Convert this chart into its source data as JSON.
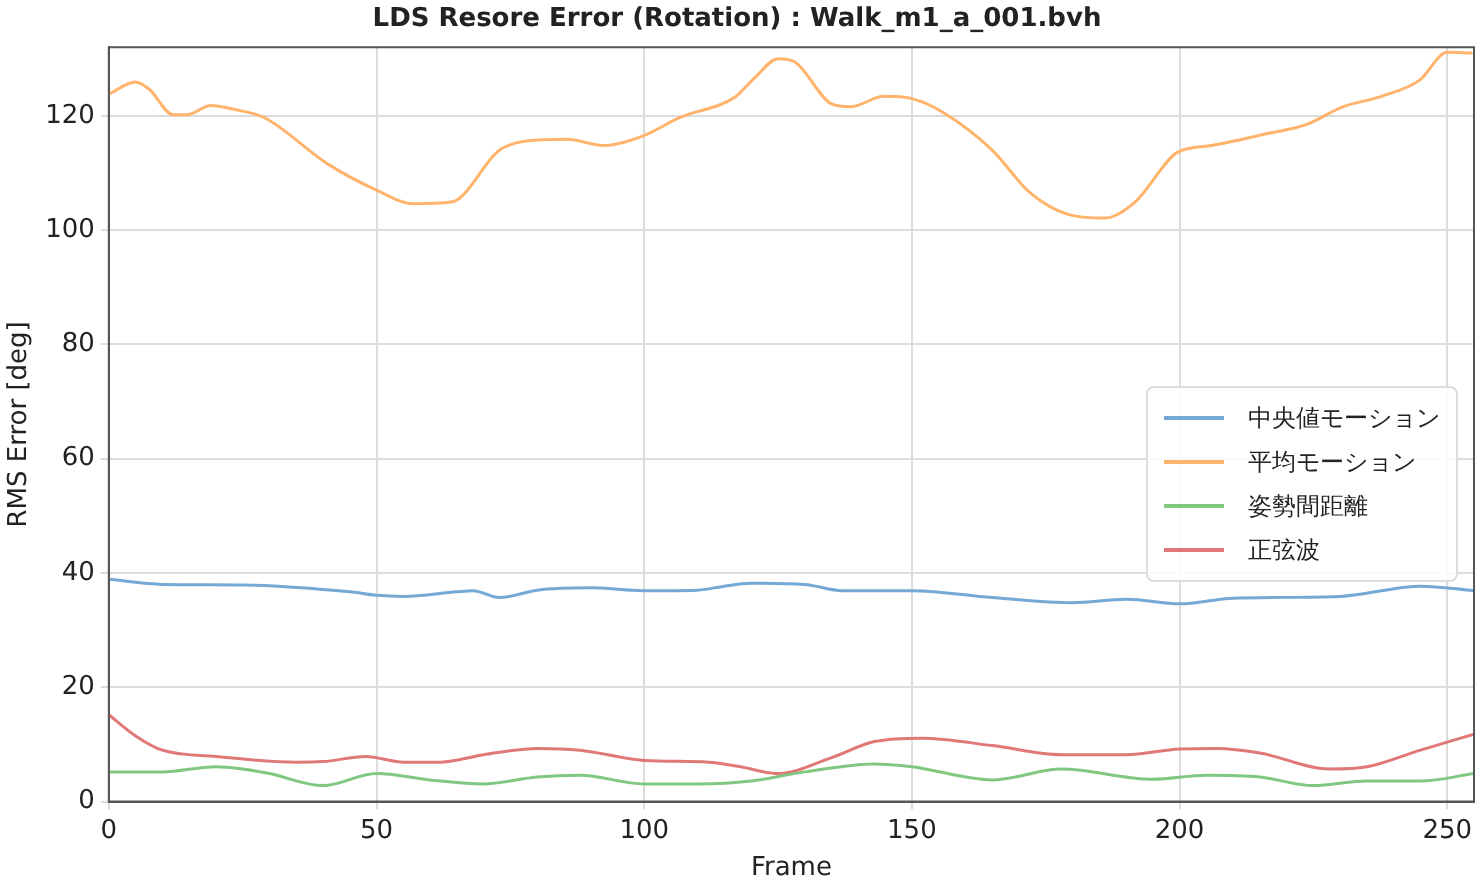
{
  "chart_data": {
    "type": "line",
    "title": "LDS Resore Error (Rotation) : Walk_m1_a_001.bvh",
    "xlabel": "Frame",
    "ylabel": "RMS Error [deg]",
    "xlim": [
      0,
      255
    ],
    "xticks": [
      0,
      50,
      100,
      150,
      200,
      250
    ],
    "ylim": [
      0,
      132
    ],
    "yticks": [
      0,
      20,
      40,
      60,
      80,
      100,
      120
    ],
    "grid": true,
    "legend": "right",
    "marker": "none",
    "line_style": "solid",
    "series": [
      {
        "name": "中央値モーション",
        "color": "#74a9d6",
        "x": [
          0,
          10,
          25,
          45,
          50,
          55,
          65,
          68,
          73,
          80,
          90,
          100,
          110,
          115,
          120,
          130,
          137,
          150,
          165,
          180,
          190,
          200,
          210,
          230,
          245,
          255
        ],
        "values": [
          38.9,
          38,
          37.9,
          36.7,
          36.1,
          35.9,
          36.7,
          36.9,
          35.7,
          37,
          37.4,
          36.9,
          37,
          37.7,
          38.2,
          38,
          36.9,
          36.9,
          35.7,
          34.8,
          35.4,
          34.6,
          35.6,
          35.9,
          37.7,
          36.9
        ]
      },
      {
        "name": "平均モーション",
        "color": "#ffb36b",
        "x": [
          0,
          5,
          7.6,
          12,
          14.7,
          19,
          23.5,
          29,
          41,
          50,
          57,
          64,
          73,
          78,
          85.5,
          92.5,
          99.6,
          106.7,
          117,
          121,
          125,
          128,
          135,
          138.6,
          144.8,
          150,
          156,
          165,
          172,
          179,
          186,
          191.7,
          199.6,
          206,
          216.5,
          223.5,
          230.6,
          237.7,
          244.8,
          250,
          254.5
        ],
        "values": [
          123.8,
          125.9,
          124.6,
          120.2,
          120.2,
          121.8,
          121.1,
          119.7,
          111.5,
          107,
          104.6,
          104.9,
          114,
          115.6,
          115.9,
          114.8,
          116.4,
          119.7,
          123.3,
          127,
          130,
          129.5,
          122.1,
          121.6,
          123.4,
          123,
          120.5,
          114,
          106.6,
          102.8,
          102.1,
          104.9,
          113.6,
          114.8,
          116.9,
          118.4,
          121.6,
          123.4,
          126.2,
          131.1,
          131
        ]
      },
      {
        "name": "姿勢間距離",
        "color": "#80c880",
        "x": [
          0,
          10,
          20,
          25,
          30,
          40,
          50,
          60,
          70,
          80,
          88,
          100,
          110,
          120,
          130,
          143,
          150,
          165,
          178,
          195,
          205,
          215,
          225,
          235,
          245,
          255
        ],
        "values": [
          5.2,
          5.2,
          6.1,
          5.7,
          4.9,
          2.8,
          4.9,
          3.8,
          3.1,
          4.3,
          4.6,
          3.1,
          3.1,
          3.6,
          5.2,
          6.6,
          6.1,
          3.8,
          5.7,
          3.9,
          4.6,
          4.3,
          2.8,
          3.6,
          3.6,
          4.9
        ]
      },
      {
        "name": "正弦波",
        "color": "#e07878",
        "x": [
          0,
          5,
          10,
          20,
          35,
          40,
          48,
          55,
          62,
          70,
          80,
          88,
          100,
          112,
          118,
          125,
          135,
          143,
          152,
          165,
          178,
          190,
          200,
          207,
          215,
          228,
          235,
          245,
          255
        ],
        "values": [
          15.2,
          11.5,
          9,
          7.9,
          6.9,
          7,
          7.9,
          6.9,
          6.9,
          8.2,
          9.3,
          9,
          7.2,
          6.9,
          6.1,
          4.9,
          7.7,
          10.5,
          11.1,
          9.8,
          8.2,
          8.2,
          9.2,
          9.3,
          8.5,
          5.7,
          6.1,
          9,
          11.8
        ]
      }
    ]
  }
}
